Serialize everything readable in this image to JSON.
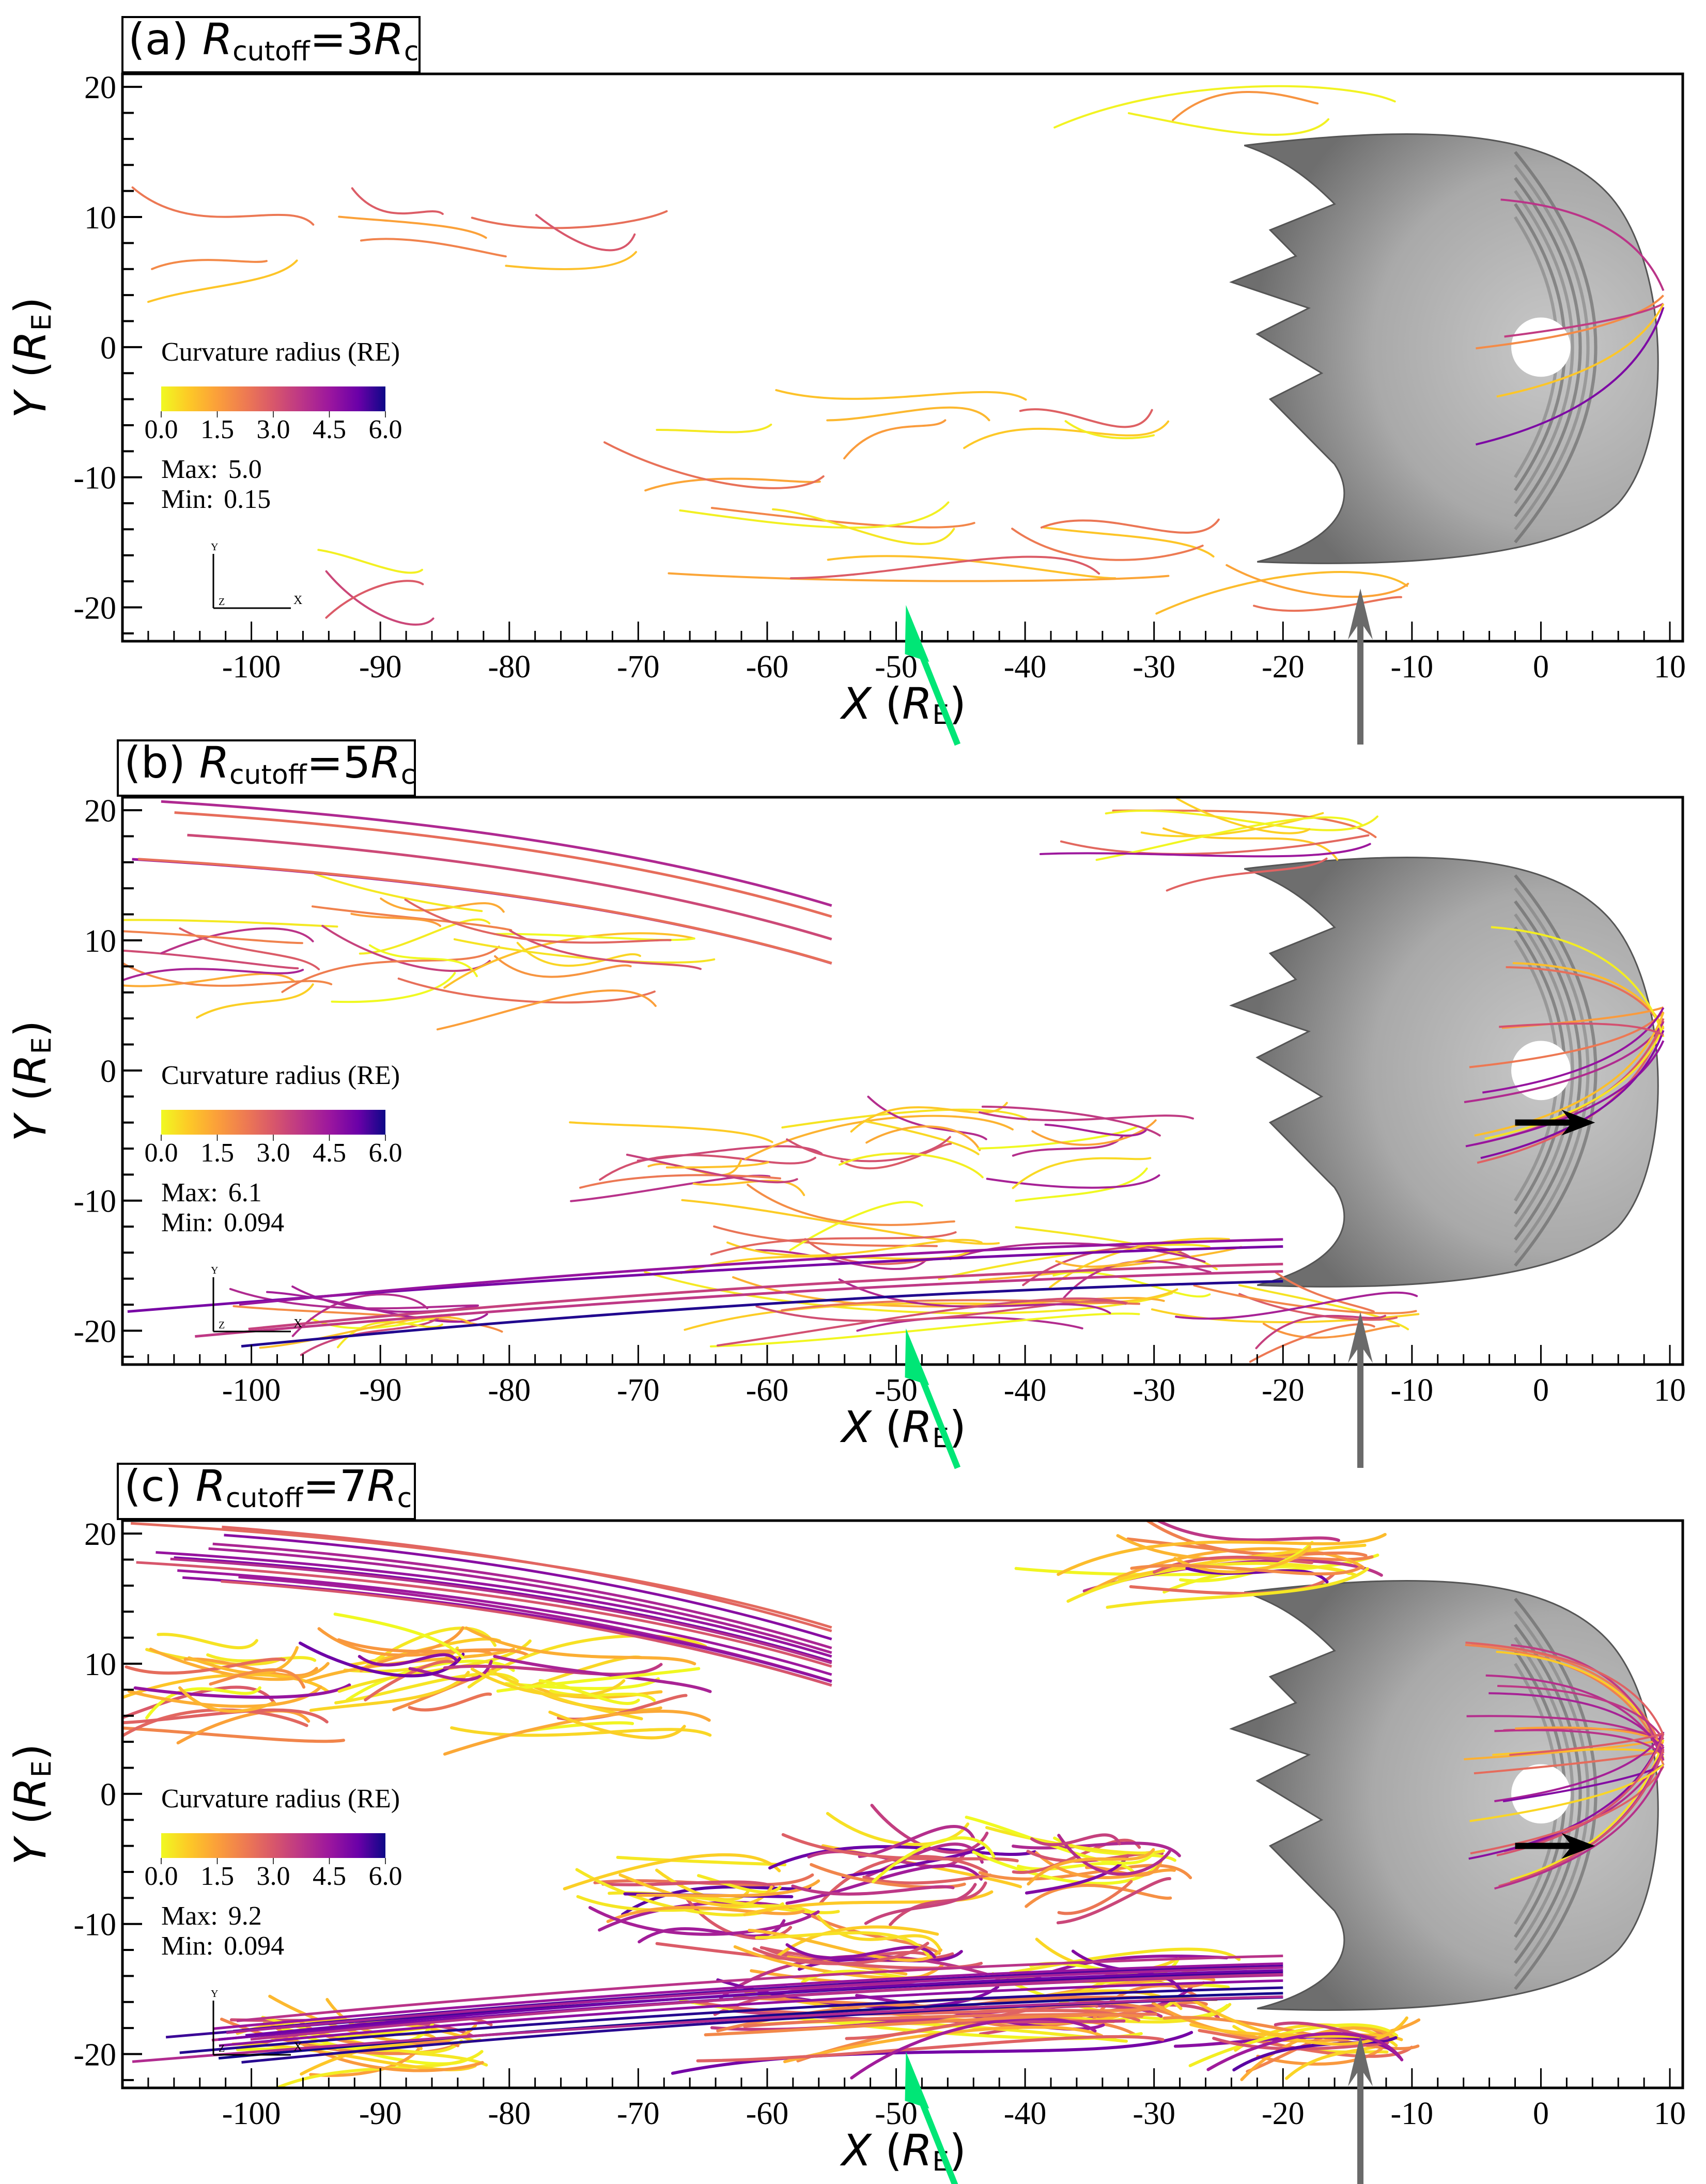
{
  "figure": {
    "panels": [
      {
        "id": "a",
        "title_prefix": "(a) ",
        "title_R": "R",
        "title_sub": "cutoff",
        "title_eq": "=3",
        "title_R2": "R",
        "title_sub2": "c",
        "legend": {
          "title": "Curvature radius (RE)",
          "max_label": "Max:",
          "max_value": "5.0",
          "min_label": "Min:",
          "min_value": "0.15"
        },
        "density": 1
      },
      {
        "id": "b",
        "title_prefix": "(b) ",
        "title_R": "R",
        "title_sub": "cutoff",
        "title_eq": "=5",
        "title_R2": "R",
        "title_sub2": "c",
        "legend": {
          "title": "Curvature radius (RE)",
          "max_label": "Max:",
          "max_value": "6.1",
          "min_label": "Min:",
          "min_value": "0.094"
        },
        "density": 2
      },
      {
        "id": "c",
        "title_prefix": "(c) ",
        "title_R": "R",
        "title_sub": "cutoff",
        "title_eq": "=7",
        "title_R2": "R",
        "title_sub2": "c",
        "legend": {
          "title": "Curvature radius (RE)",
          "max_label": "Max:",
          "max_value": "9.2",
          "min_label": "Min:",
          "min_value": "0.094"
        },
        "density": 3
      }
    ],
    "triad": {
      "y": "Y",
      "z": "Z",
      "x": "X"
    },
    "colors": {
      "green_arrow": "#00e676",
      "gray_arrow": "#6a6a6a",
      "black_arrow": "#000000",
      "surface": "#a8a8a8"
    }
  },
  "chart_data": [
    {
      "type": "scatter",
      "title": "(a) Rcutoff=3Rc",
      "xlabel": "X (RE)",
      "ylabel": "Y (RE)",
      "xlim": [
        -110,
        11
      ],
      "ylim": [
        -22.6,
        21
      ],
      "xticks": [
        -100,
        -90,
        -80,
        -70,
        -60,
        -50,
        -40,
        -30,
        -20,
        -10,
        0,
        10
      ],
      "yticks": [
        20,
        10,
        0,
        -10,
        -20
      ],
      "xtick_labels": [
        "-100",
        "-90",
        "-80",
        "-70",
        "-60",
        "-50",
        "-40",
        "-30",
        "-20",
        "-10",
        "0",
        "10"
      ],
      "ytick_labels": [
        "20",
        "10",
        "0",
        "-10",
        "-20"
      ],
      "colorbar": {
        "label": "Curvature radius (RE)",
        "ticks": [
          "0.0",
          "1.5",
          "3.0",
          "4.5",
          "6.0"
        ],
        "range": [
          0,
          6
        ],
        "colormap": "plasma_r"
      },
      "max": 5.0,
      "min": 0.15,
      "annotations": {
        "green_arrow_x": -49,
        "gray_arrow_x": -14
      }
    },
    {
      "type": "scatter",
      "title": "(b) Rcutoff=5Rc",
      "xlabel": "X (RE)",
      "ylabel": "Y (RE)",
      "xlim": [
        -110,
        11
      ],
      "ylim": [
        -22.6,
        21
      ],
      "xticks": [
        -100,
        -90,
        -80,
        -70,
        -60,
        -50,
        -40,
        -30,
        -20,
        -10,
        0,
        10
      ],
      "yticks": [
        20,
        10,
        0,
        -10,
        -20
      ],
      "xtick_labels": [
        "-100",
        "-90",
        "-80",
        "-70",
        "-60",
        "-50",
        "-40",
        "-30",
        "-20",
        "-10",
        "0",
        "10"
      ],
      "ytick_labels": [
        "20",
        "10",
        "0",
        "-10",
        "-20"
      ],
      "colorbar": {
        "label": "Curvature radius (RE)",
        "ticks": [
          "0.0",
          "1.5",
          "3.0",
          "4.5",
          "6.0"
        ],
        "range": [
          0,
          6
        ],
        "colormap": "plasma_r"
      },
      "max": 6.1,
      "min": 0.094,
      "annotations": {
        "green_arrow_x": -49,
        "gray_arrow_x": -14,
        "black_arrow_y": -4
      }
    },
    {
      "type": "scatter",
      "title": "(c) Rcutoff=7Rc",
      "xlabel": "X (RE)",
      "ylabel": "Y (RE)",
      "xlim": [
        -110,
        11
      ],
      "ylim": [
        -22.6,
        21
      ],
      "xticks": [
        -100,
        -90,
        -80,
        -70,
        -60,
        -50,
        -40,
        -30,
        -20,
        -10,
        0,
        10
      ],
      "yticks": [
        20,
        10,
        0,
        -10,
        -20
      ],
      "xtick_labels": [
        "-100",
        "-90",
        "-80",
        "-70",
        "-60",
        "-50",
        "-40",
        "-30",
        "-20",
        "-10",
        "0",
        "10"
      ],
      "ytick_labels": [
        "20",
        "10",
        "0",
        "-10",
        "-20"
      ],
      "colorbar": {
        "label": "Curvature radius (RE)",
        "ticks": [
          "0.0",
          "1.5",
          "3.0",
          "4.5",
          "6.0"
        ],
        "range": [
          0,
          6
        ],
        "colormap": "plasma_r"
      },
      "max": 9.2,
      "min": 0.094,
      "annotations": {
        "green_arrow_x": -49,
        "gray_arrow_x": -14,
        "black_arrow_y": -4
      }
    }
  ]
}
